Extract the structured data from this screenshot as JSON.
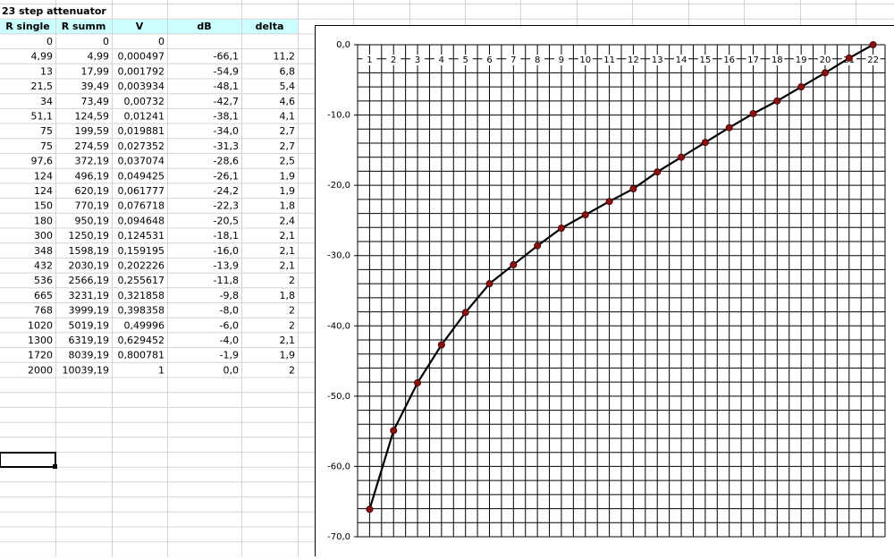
{
  "sheet": {
    "title": "23 step attenuator",
    "columns": [
      "R single",
      "R summ",
      "V",
      "dB",
      "delta"
    ],
    "rows": [
      [
        "0",
        "0",
        "0"
      ],
      [
        "4,99",
        "4,99",
        "0,000497",
        "-66,1",
        "11,2"
      ],
      [
        "13",
        "17,99",
        "0,001792",
        "-54,9",
        "6,8"
      ],
      [
        "21,5",
        "39,49",
        "0,003934",
        "-48,1",
        "5,4"
      ],
      [
        "34",
        "73,49",
        "0,00732",
        "-42,7",
        "4,6"
      ],
      [
        "51,1",
        "124,59",
        "0,01241",
        "-38,1",
        "4,1"
      ],
      [
        "75",
        "199,59",
        "0,019881",
        "-34,0",
        "2,7"
      ],
      [
        "75",
        "274,59",
        "0,027352",
        "-31,3",
        "2,7"
      ],
      [
        "97,6",
        "372,19",
        "0,037074",
        "-28,6",
        "2,5"
      ],
      [
        "124",
        "496,19",
        "0,049425",
        "-26,1",
        "1,9"
      ],
      [
        "124",
        "620,19",
        "0,061777",
        "-24,2",
        "1,9"
      ],
      [
        "150",
        "770,19",
        "0,076718",
        "-22,3",
        "1,8"
      ],
      [
        "180",
        "950,19",
        "0,094648",
        "-20,5",
        "2,4"
      ],
      [
        "300",
        "1250,19",
        "0,124531",
        "-18,1",
        "2,1"
      ],
      [
        "348",
        "1598,19",
        "0,159195",
        "-16,0",
        "2,1"
      ],
      [
        "432",
        "2030,19",
        "0,202226",
        "-13,9",
        "2,1"
      ],
      [
        "536",
        "2566,19",
        "0,255617",
        "-11,8",
        "2"
      ],
      [
        "665",
        "3231,19",
        "0,321858",
        "-9,8",
        "1,8"
      ],
      [
        "768",
        "3999,19",
        "0,398358",
        "-8,0",
        "2"
      ],
      [
        "1020",
        "5019,19",
        "0,49996",
        "-6,0",
        "2"
      ],
      [
        "1300",
        "6319,19",
        "0,629452",
        "-4,0",
        "2,1"
      ],
      [
        "1720",
        "8039,19",
        "0,800781",
        "-1,9",
        "1,9"
      ],
      [
        "2000",
        "10039,19",
        "1",
        "0,0",
        "2"
      ]
    ]
  },
  "chart_data": {
    "type": "line",
    "categories": [
      1,
      2,
      3,
      4,
      5,
      6,
      7,
      8,
      9,
      10,
      11,
      12,
      13,
      14,
      15,
      16,
      17,
      18,
      19,
      20,
      21,
      22
    ],
    "values": [
      -66.1,
      -54.9,
      -48.1,
      -42.7,
      -38.1,
      -34.0,
      -31.3,
      -28.6,
      -26.1,
      -24.2,
      -22.3,
      -20.5,
      -18.1,
      -16.0,
      -13.9,
      -11.8,
      -9.8,
      -8.0,
      -6.0,
      -4.0,
      -1.9,
      0.0
    ],
    "color": "#000000",
    "marker_color": "#8b1010",
    "ylim": [
      -70,
      0
    ],
    "yticks": [
      {
        "value": 0,
        "label": "0,0"
      },
      {
        "value": -10,
        "label": "-10,0"
      },
      {
        "value": -20,
        "label": "-20,0"
      },
      {
        "value": -30,
        "label": "-30,0"
      },
      {
        "value": -40,
        "label": "-40,0"
      },
      {
        "value": -50,
        "label": "-50,0"
      },
      {
        "value": -60,
        "label": "-60,0"
      },
      {
        "value": -70,
        "label": "-70,0"
      }
    ],
    "grid": true
  }
}
